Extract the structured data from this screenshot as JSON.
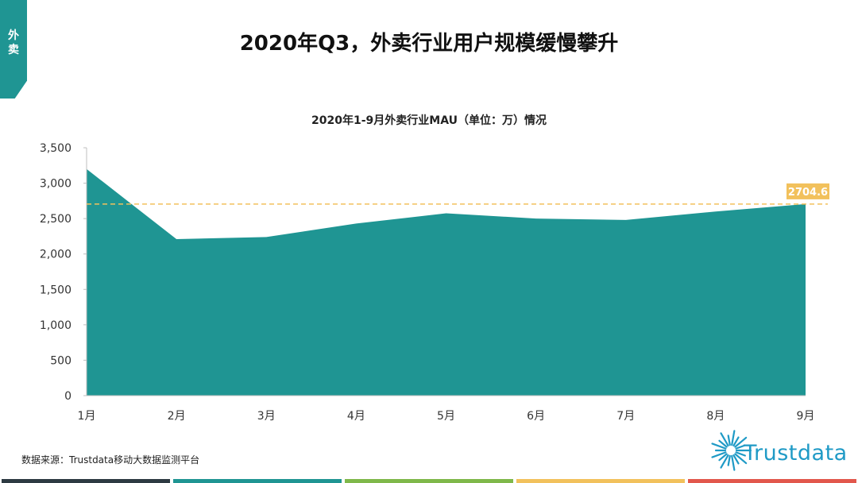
{
  "side_tab": {
    "label": "外卖"
  },
  "page_title": "2020年Q3，外卖行业用户规模缓慢攀升",
  "source": "数据来源：Trustdata移动大数据监测平台",
  "logo": {
    "text": "Trustdata",
    "icon": "starburst-icon",
    "color": "#1f9ac6"
  },
  "footer_colors": [
    "#2d3a42",
    "#1f9593",
    "#7fb84a",
    "#f2c15c",
    "#e2574c"
  ],
  "chart_data": {
    "type": "area",
    "title": "2020年1-9月外卖行业MAU（单位：万）情况",
    "categories": [
      "1月",
      "2月",
      "3月",
      "4月",
      "5月",
      "6月",
      "7月",
      "8月",
      "9月"
    ],
    "series": [
      {
        "values": [
          3200,
          2210,
          2240,
          2430,
          2575,
          2500,
          2480,
          2600,
          2704.6
        ],
        "color": "#1f9593"
      }
    ],
    "ylim": [
      0,
      3500
    ],
    "yticks": [
      0,
      500,
      1000,
      1500,
      2000,
      2500,
      3000,
      3500
    ],
    "ytick_labels": [
      "0",
      "500",
      "1,000",
      "1,500",
      "2,000",
      "2,500",
      "3,000",
      "3,500"
    ],
    "reference_line": {
      "value": 2704.6,
      "label": "2704.6",
      "color": "#f2c15c",
      "style": "dashed"
    },
    "grid": false,
    "legend": "none"
  }
}
